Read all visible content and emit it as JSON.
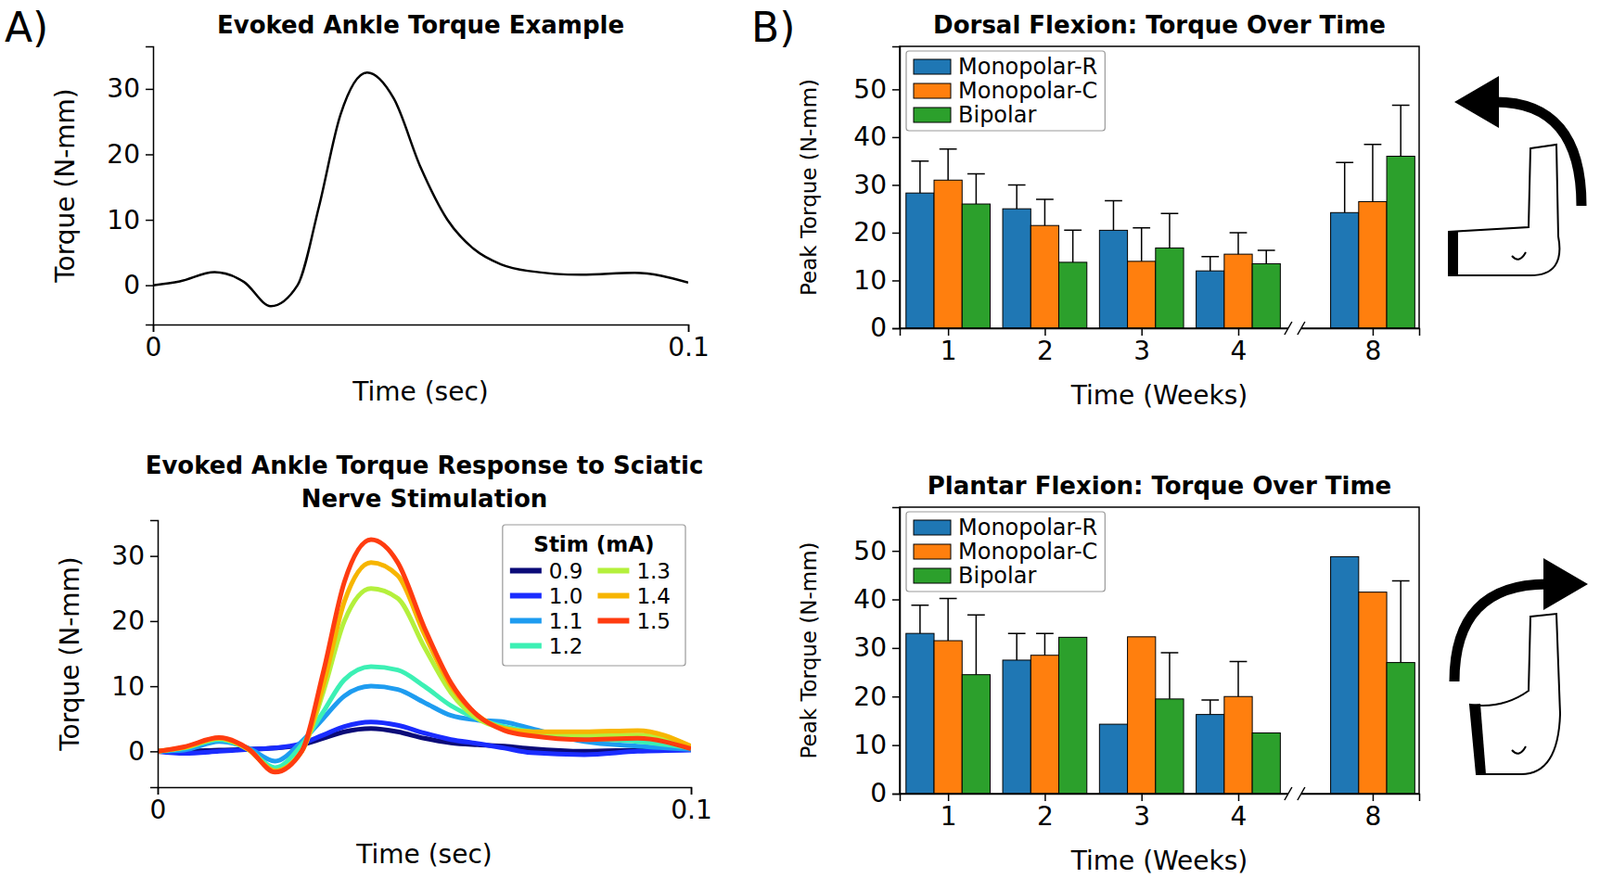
{
  "chart_data": [
    {
      "type": "line",
      "panel": "A)",
      "title": "Evoked Ankle Torque Example",
      "x_label": "Time (sec)",
      "y_label": "Torque (N-mm)",
      "x": [
        0,
        0.005,
        0.0115,
        0.017,
        0.022,
        0.027,
        0.031,
        0.035,
        0.04,
        0.045,
        0.05,
        0.055,
        0.06,
        0.065,
        0.07,
        0.08,
        0.09,
        0.1
      ],
      "series": [
        {
          "color": "#000000",
          "values": [
            0,
            0.6,
            2.0,
            0.5,
            -3.2,
            0,
            12,
            26,
            32.5,
            28.5,
            18,
            10,
            5.5,
            3.2,
            2.2,
            1.6,
            1.9,
            0.4
          ]
        }
      ],
      "xlim": [
        0,
        0.1
      ],
      "ylim": [
        -6,
        36.5
      ],
      "xticks": [
        0,
        0.1
      ],
      "yticks": [
        0,
        10,
        20,
        30
      ]
    },
    {
      "type": "line",
      "title": "Evoked Ankle Torque Response to Sciatic Nerve Stimulation",
      "x_label": "Time (sec)",
      "y_label": "Torque (N-mm)",
      "legend": "upper right",
      "legend_title": "Stim (mA)",
      "x": [
        0,
        0.005,
        0.0115,
        0.017,
        0.022,
        0.027,
        0.031,
        0.035,
        0.04,
        0.045,
        0.05,
        0.055,
        0.06,
        0.065,
        0.07,
        0.08,
        0.09,
        0.1
      ],
      "series": [
        {
          "name": "0.9",
          "color": "#0b0b78",
          "values": [
            0,
            0,
            0.2,
            0.3,
            0.5,
            1,
            2,
            3,
            3.5,
            3,
            2,
            1.3,
            1,
            0.8,
            0.4,
            0,
            0.2,
            0.3
          ]
        },
        {
          "name": "1.0",
          "color": "#1a2cff",
          "values": [
            0,
            -0.3,
            0,
            0.3,
            0.5,
            1.2,
            2.5,
            3.8,
            4.5,
            4,
            2.8,
            1.8,
            1.2,
            0.5,
            -0.2,
            -0.5,
            0,
            0.2
          ]
        },
        {
          "name": "1.1",
          "color": "#1e9cf0",
          "values": [
            0,
            0.2,
            1.5,
            0.5,
            -1.5,
            1.5,
            5,
            8.5,
            10,
            9.5,
            7.5,
            5.5,
            4.8,
            4.5,
            3.5,
            1.5,
            0.8,
            0.3
          ]
        },
        {
          "name": "1.2",
          "color": "#3cf0b4",
          "values": [
            0,
            0.5,
            1.8,
            0.3,
            -2.5,
            1,
            6,
            11,
            13,
            12.5,
            10,
            7,
            5,
            3.8,
            3,
            2,
            1.5,
            0.5
          ]
        },
        {
          "name": "1.3",
          "color": "#b4f03c",
          "values": [
            0,
            0.6,
            2,
            0.3,
            -3,
            0,
            9,
            20,
            25,
            23.5,
            16,
            9,
            5,
            3.5,
            3,
            2.5,
            2.5,
            0.6
          ]
        },
        {
          "name": "1.4",
          "color": "#f7b500",
          "values": [
            0,
            0.6,
            2,
            0.3,
            -3,
            0,
            10,
            23,
            29,
            27,
            18,
            10,
            5.5,
            3.5,
            3,
            3,
            3.2,
            0.8
          ]
        },
        {
          "name": "1.5",
          "color": "#ff3c10",
          "values": [
            0,
            0.7,
            2.1,
            0.4,
            -3.2,
            0,
            12,
            26,
            32.5,
            29,
            19,
            10.5,
            5.5,
            3.2,
            2.4,
            1.8,
            2,
            0.4
          ]
        }
      ],
      "xlim": [
        0,
        0.1
      ],
      "ylim": [
        -5.5,
        35.5
      ],
      "xticks": [
        0,
        0.1
      ],
      "yticks": [
        0,
        10,
        20,
        30
      ]
    },
    {
      "type": "bar",
      "panel": "B)",
      "title": "Dorsal Flexion: Torque Over Time",
      "x_label": "Time (Weeks)",
      "y_label": "Peak Torque (N-mm)",
      "legend": "upper left",
      "categories": [
        "1",
        "2",
        "3",
        "4",
        "8"
      ],
      "series": [
        {
          "name": "Monopolar-R",
          "color": "#1f77b4",
          "values": [
            28.3,
            25,
            20.5,
            12,
            24.2
          ],
          "errors": [
            6.7,
            5,
            6.2,
            3,
            10.5
          ]
        },
        {
          "name": "Monopolar-C",
          "color": "#ff7f0e",
          "values": [
            31,
            21.5,
            14,
            15.5,
            26.5
          ],
          "errors": [
            6.5,
            5.5,
            7,
            4.5,
            12
          ]
        },
        {
          "name": "Bipolar",
          "color": "#2ca02c",
          "values": [
            26,
            13.8,
            16.8,
            13.5,
            36
          ],
          "errors": [
            6.3,
            6.7,
            7.2,
            2.8,
            10.7
          ]
        }
      ],
      "ylim": [
        0,
        59
      ],
      "yticks": [
        0,
        10,
        20,
        30,
        40,
        50
      ]
    },
    {
      "type": "bar",
      "title": "Plantar Flexion: Torque Over Time",
      "x_label": "Time (Weeks)",
      "y_label": "Peak Torque (N-mm)",
      "legend": "upper left",
      "categories": [
        "1",
        "2",
        "3",
        "4",
        "8"
      ],
      "series": [
        {
          "name": "Monopolar-R",
          "color": "#1f77b4",
          "values": [
            33,
            27.5,
            14.3,
            16.3,
            48.8
          ],
          "errors": [
            5.8,
            5.5,
            null,
            3,
            null
          ]
        },
        {
          "name": "Monopolar-C",
          "color": "#ff7f0e",
          "values": [
            31.5,
            28.5,
            32.3,
            20,
            41.5
          ],
          "errors": [
            8.7,
            4.5,
            null,
            7.2,
            null
          ]
        },
        {
          "name": "Bipolar",
          "color": "#2ca02c",
          "values": [
            24.5,
            32.2,
            19.5,
            12.5,
            27
          ],
          "errors": [
            12.3,
            null,
            9.5,
            null,
            16.8
          ]
        }
      ],
      "ylim": [
        0,
        59
      ],
      "yticks": [
        0,
        10,
        20,
        30,
        40,
        50
      ]
    }
  ]
}
